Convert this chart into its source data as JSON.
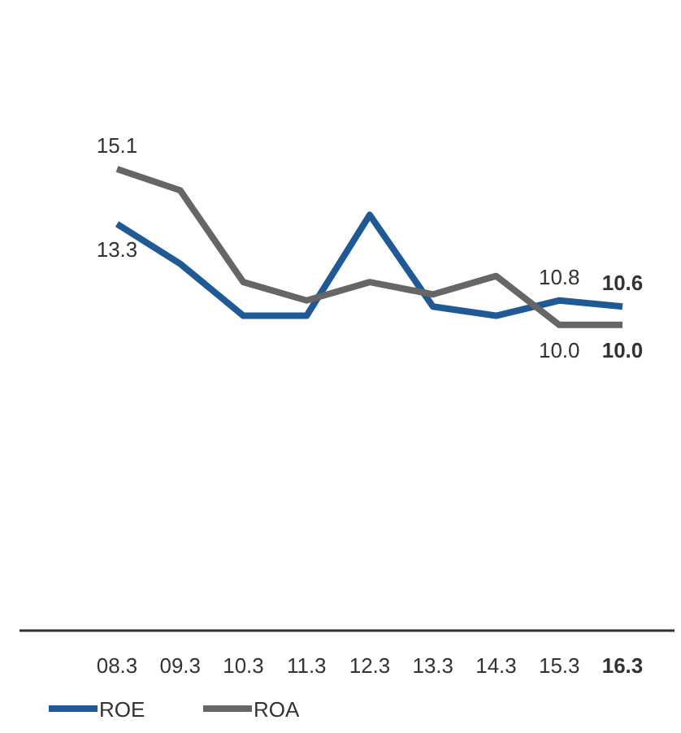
{
  "chart_data": {
    "type": "line",
    "categories": [
      "08.3",
      "09.3",
      "10.3",
      "11.3",
      "12.3",
      "13.3",
      "14.3",
      "15.3",
      "16.3"
    ],
    "series": [
      {
        "name": "ROE",
        "color": "#1f5a96",
        "values": [
          13.3,
          12.0,
          10.3,
          10.3,
          13.6,
          10.6,
          10.3,
          10.8,
          10.6
        ],
        "value_labels": [
          "13.3",
          null,
          null,
          null,
          null,
          null,
          null,
          "10.8",
          "10.6"
        ]
      },
      {
        "name": "ROA",
        "color": "#666666",
        "values": [
          15.1,
          14.4,
          11.4,
          10.8,
          11.4,
          11.0,
          11.6,
          10.0,
          10.0
        ],
        "value_labels": [
          "15.1",
          null,
          null,
          null,
          null,
          null,
          null,
          "10.0",
          "10.0"
        ]
      }
    ],
    "tick_labels": "x",
    "legend": "bottom left",
    "marker": "none",
    "line_style": "solid"
  }
}
